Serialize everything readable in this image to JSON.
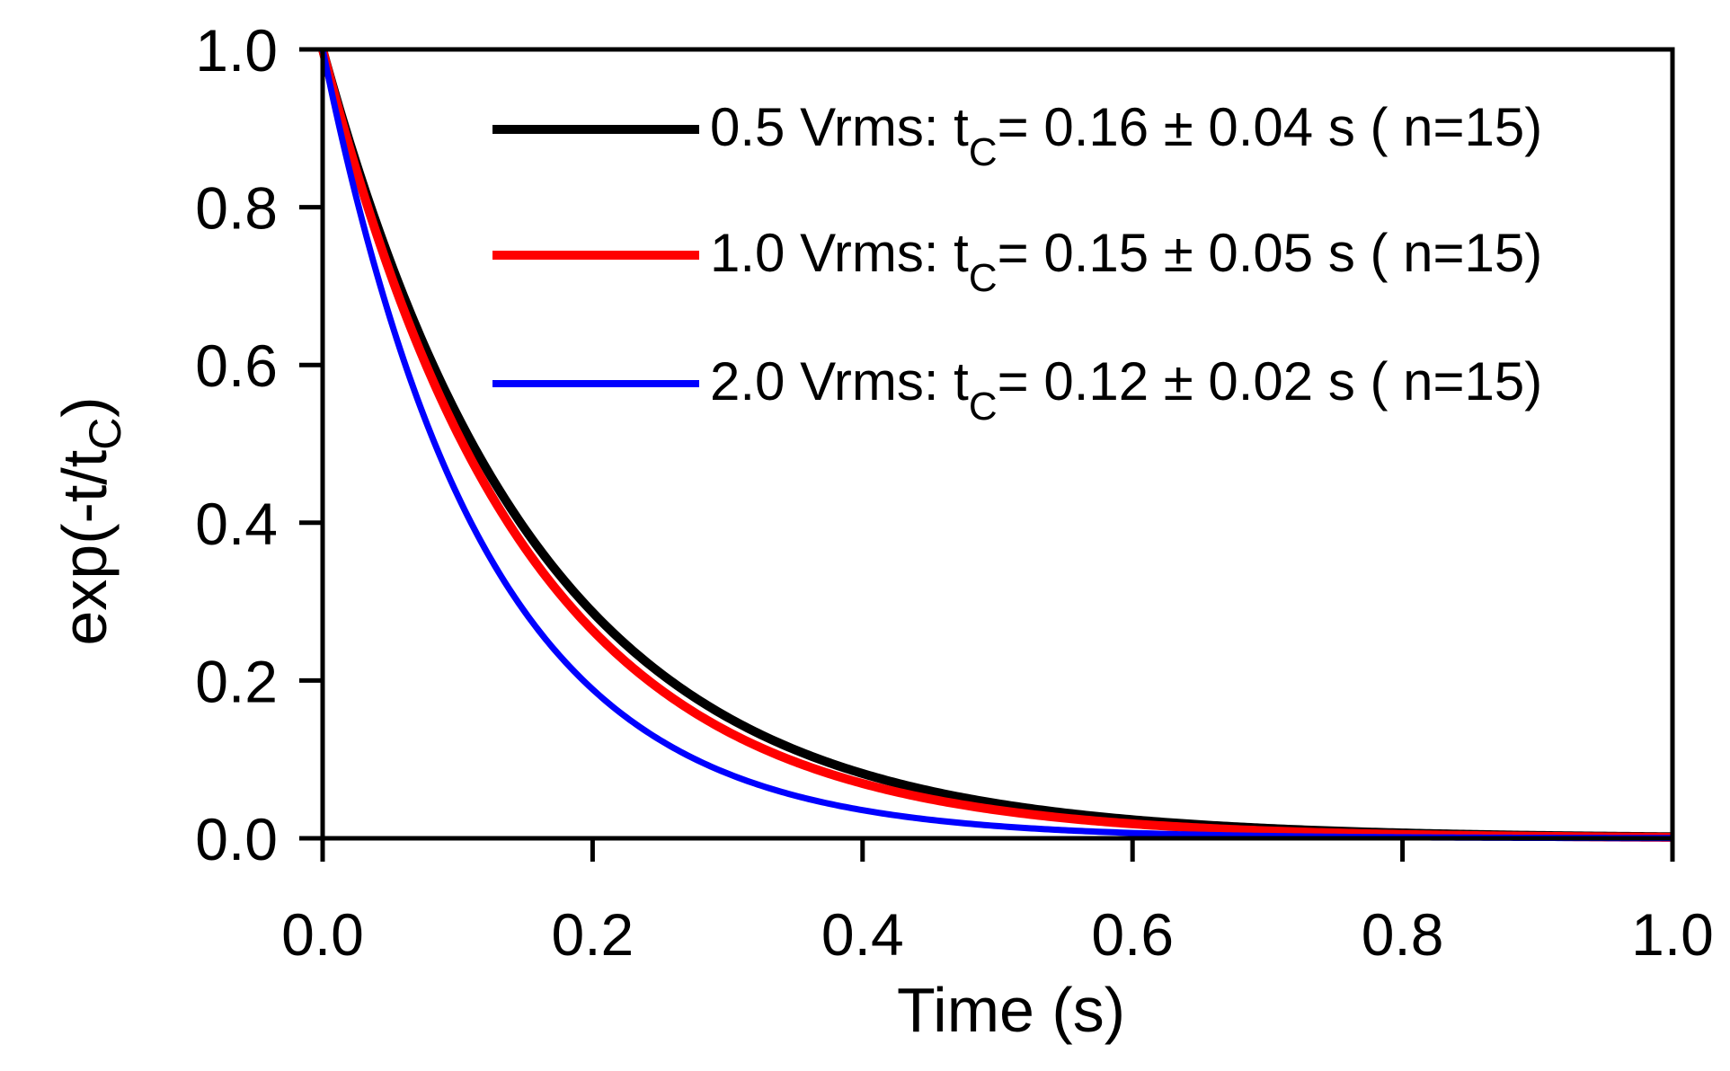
{
  "chart_data": {
    "type": "line",
    "title": "",
    "xlabel": "Time (s)",
    "ylabel": {
      "base": "exp(-t/t",
      "sub": "C",
      "close": ")"
    },
    "xlim": [
      0,
      1.0
    ],
    "ylim": [
      0,
      1.0
    ],
    "xticks": [
      0.0,
      0.2,
      0.4,
      0.6,
      0.8,
      1.0
    ],
    "xtick_labels": [
      "0.0",
      "0.2",
      "0.4",
      "0.6",
      "0.8",
      "1.0"
    ],
    "yticks": [
      0.0,
      0.2,
      0.4,
      0.6,
      0.8,
      1.0
    ],
    "ytick_labels": [
      "0.0",
      "0.2",
      "0.4",
      "0.6",
      "0.8",
      "1.0"
    ],
    "grid": false,
    "legend_position": "top-right",
    "series": [
      {
        "name": "0.5 Vrms",
        "tc": 0.16,
        "color": "#000000",
        "legend": {
          "prefix": "0.5 Vrms: t",
          "sub": "C",
          "suffix": "= 0.16 ± 0.04 s ( n=15)"
        },
        "x": [
          0,
          0.02,
          0.04,
          0.06,
          0.08,
          0.1,
          0.12,
          0.14,
          0.16,
          0.18,
          0.2,
          0.25,
          0.3,
          0.35,
          0.4,
          0.45,
          0.5,
          0.55,
          0.6,
          0.65,
          0.7,
          0.8,
          0.9,
          1.0
        ],
        "y": [
          1.0,
          0.882,
          0.779,
          0.687,
          0.607,
          0.535,
          0.472,
          0.417,
          0.368,
          0.325,
          0.287,
          0.21,
          0.153,
          0.112,
          0.082,
          0.06,
          0.044,
          0.032,
          0.024,
          0.017,
          0.013,
          0.007,
          0.004,
          0.002
        ]
      },
      {
        "name": "1.0 Vrms",
        "tc": 0.15,
        "color": "#ff0000",
        "legend": {
          "prefix": "1.0 Vrms: t",
          "sub": "C",
          "suffix": "= 0.15 ± 0.05 s ( n=15)"
        },
        "x": [
          0,
          0.02,
          0.04,
          0.06,
          0.08,
          0.1,
          0.12,
          0.14,
          0.16,
          0.18,
          0.2,
          0.25,
          0.3,
          0.35,
          0.4,
          0.45,
          0.5,
          0.55,
          0.6,
          0.65,
          0.7,
          0.8,
          0.9,
          1.0
        ],
        "y": [
          1.0,
          0.875,
          0.766,
          0.67,
          0.587,
          0.513,
          0.449,
          0.393,
          0.344,
          0.301,
          0.264,
          0.189,
          0.135,
          0.097,
          0.069,
          0.05,
          0.036,
          0.026,
          0.018,
          0.013,
          0.009,
          0.005,
          0.002,
          0.001
        ]
      },
      {
        "name": "2.0 Vrms",
        "tc": 0.12,
        "color": "#0000ff",
        "legend": {
          "prefix": "2.0 Vrms: t",
          "sub": "C",
          "suffix": "= 0.12 ± 0.02 s ( n=15)"
        },
        "x": [
          0,
          0.02,
          0.04,
          0.06,
          0.08,
          0.1,
          0.12,
          0.14,
          0.16,
          0.18,
          0.2,
          0.25,
          0.3,
          0.35,
          0.4,
          0.45,
          0.5,
          0.55,
          0.6,
          0.65,
          0.7,
          0.8,
          0.9,
          1.0
        ],
        "y": [
          1.0,
          0.846,
          0.717,
          0.607,
          0.513,
          0.435,
          0.368,
          0.311,
          0.264,
          0.223,
          0.189,
          0.125,
          0.082,
          0.054,
          0.036,
          0.024,
          0.016,
          0.01,
          0.007,
          0.004,
          0.003,
          0.001,
          0.001,
          0.0
        ]
      }
    ]
  }
}
